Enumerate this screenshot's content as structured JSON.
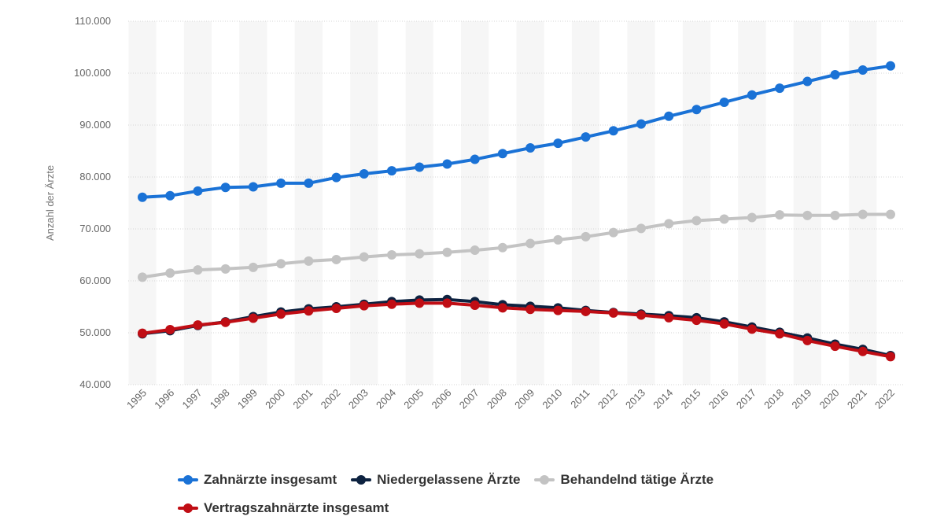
{
  "chart_data": {
    "type": "line",
    "title": "",
    "xlabel": "",
    "ylabel": "Anzahl der Ärzte",
    "ylim": [
      40000,
      110000
    ],
    "yticks": [
      {
        "value": 40000,
        "label": "40.000"
      },
      {
        "value": 50000,
        "label": "50.000"
      },
      {
        "value": 60000,
        "label": "60.000"
      },
      {
        "value": 70000,
        "label": "70.000"
      },
      {
        "value": 80000,
        "label": "80.000"
      },
      {
        "value": 90000,
        "label": "90.000"
      },
      {
        "value": 100000,
        "label": "100.000"
      },
      {
        "value": 110000,
        "label": "110.000"
      }
    ],
    "grid": true,
    "legend_position": "bottom",
    "categories": [
      "1995",
      "1996",
      "1997",
      "1998",
      "1999",
      "2000",
      "2001",
      "2002",
      "2003",
      "2004",
      "2005",
      "2006",
      "2007",
      "2008",
      "2009",
      "2010",
      "2011",
      "2012",
      "2013",
      "2014",
      "2015",
      "2016",
      "2017",
      "2018",
      "2019",
      "2020",
      "2021",
      "2022"
    ],
    "series": [
      {
        "name": "Zahnärzte insgesamt",
        "color": "#1a72d6",
        "values": [
          76100,
          76400,
          77300,
          78000,
          78100,
          78800,
          78800,
          79900,
          80600,
          81200,
          81900,
          82500,
          83400,
          84500,
          85600,
          86500,
          87700,
          88900,
          90200,
          91700,
          93000,
          94400,
          95800,
          97100,
          98400,
          99700,
          100600,
          101400
        ]
      },
      {
        "name": "Niedergelassene Ärzte",
        "color": "#0d2240",
        "values": [
          49800,
          50400,
          51400,
          52100,
          53100,
          54000,
          54600,
          55000,
          55500,
          56000,
          56300,
          56400,
          56000,
          55400,
          55100,
          54800,
          54300,
          53900,
          53600,
          53300,
          52900,
          52100,
          51100,
          50100,
          49000,
          47800,
          46800,
          45600
        ]
      },
      {
        "name": "Behandelnd tätige Ärzte",
        "color": "#c3c3c3",
        "values": [
          60700,
          61500,
          62100,
          62300,
          62600,
          63300,
          63800,
          64100,
          64600,
          65000,
          65200,
          65500,
          65900,
          66400,
          67200,
          67900,
          68500,
          69300,
          70100,
          71000,
          71600,
          71900,
          72200,
          72700,
          72600,
          72600,
          72800,
          72800
        ]
      },
      {
        "name": "Vertragszahnärzte insgesamt",
        "color": "#c00d14",
        "values": [
          49900,
          50600,
          51500,
          52000,
          52800,
          53600,
          54200,
          54700,
          55200,
          55500,
          55700,
          55700,
          55300,
          54800,
          54500,
          54300,
          54100,
          53800,
          53400,
          52900,
          52400,
          51700,
          50700,
          49800,
          48500,
          47400,
          46400,
          45400
        ]
      }
    ]
  }
}
